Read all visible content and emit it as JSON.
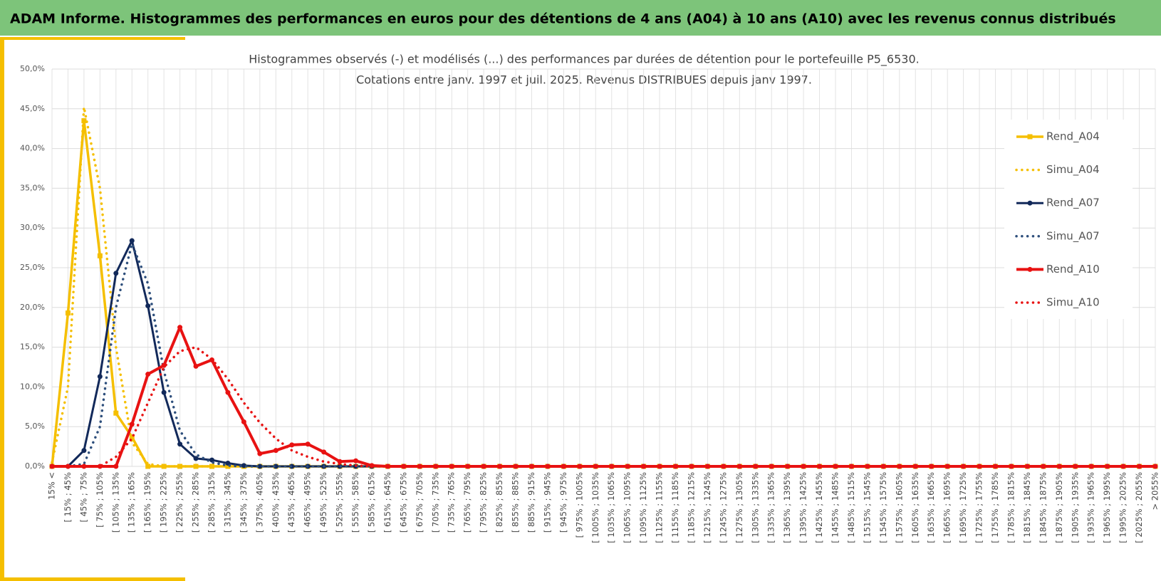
{
  "header": {
    "title": "ADAM Informe. Histogrammes des performances en euros pour des détentions de 4 ans (A04) à 10 ans (A10) avec les revenus connus distribués"
  },
  "chart_data": {
    "type": "line",
    "title": "Histogrammes observés (-) et modélisés (...) des performances par durées de détention pour le portefeuille P5_6530.",
    "subtitle": "Cotations entre janv. 1997 et juil. 2025. Revenus DISTRIBUES depuis janv 1997.",
    "categories": [
      "15% <",
      "[ 15% ; 45%",
      "[ 45% ; 75%",
      "[ 75% ; 105%",
      "[ 105% ; 135%",
      "[ 135% ; 165%",
      "[ 165% ; 195%",
      "[ 195% ; 225%",
      "[ 225% ; 255%",
      "[ 255% ; 285%",
      "[ 285% ; 315%",
      "[ 315% ; 345%",
      "[ 345% ; 375%",
      "[ 375% ; 405%",
      "[ 405% ; 435%",
      "[ 435% ; 465%",
      "[ 465% ; 495%",
      "[ 495% ; 525%",
      "[ 525% ; 555%",
      "[ 555% ; 585%",
      "[ 585% ; 615%",
      "[ 615% ; 645%",
      "[ 645% ; 675%",
      "[ 675% ; 705%",
      "[ 705% ; 735%",
      "[ 735% ; 765%",
      "[ 765% ; 795%",
      "[ 795% ; 825%",
      "[ 825% ; 855%",
      "[ 855% ; 885%",
      "[ 885% ; 915%",
      "[ 915% ; 945%",
      "[ 945% ; 975%",
      "[ 975% ; 1005%",
      "[ 1005% ; 1035%",
      "[ 1035% ; 1065%",
      "[ 1065% ; 1095%",
      "[ 1095% ; 1125%",
      "[ 1125% ; 1155%",
      "[ 1155% ; 1185%",
      "[ 1185% ; 1215%",
      "[ 1215% ; 1245%",
      "[ 1245% ; 1275%",
      "[ 1275% ; 1305%",
      "[ 1305% ; 1335%",
      "[ 1335% ; 1365%",
      "[ 1365% ; 1395%",
      "[ 1395% ; 1425%",
      "[ 1425% ; 1455%",
      "[ 1455% ; 1485%",
      "[ 1485% ; 1515%",
      "[ 1515% ; 1545%",
      "[ 1545% ; 1575%",
      "[ 1575% ; 1605%",
      "[ 1605% ; 1635%",
      "[ 1635% ; 1665%",
      "[ 1665% ; 1695%",
      "[ 1695% ; 1725%",
      "[ 1725% ; 1755%",
      "[ 1755% ; 1785%",
      "[ 1785% ; 1815%",
      "[ 1815% ; 1845%",
      "[ 1845% ; 1875%",
      "[ 1875% ; 1905%",
      "[ 1905% ; 1935%",
      "[ 1935% ; 1965%",
      "[ 1965% ; 1995%",
      "[ 1995% ; 2025%",
      "[ 2025% ; 2055%",
      "> 2055%"
    ],
    "series": [
      {
        "name": "Rend_A04",
        "color": "#f5bf00",
        "dash": "solid",
        "marker": "square",
        "width": 3.5,
        "values": [
          0,
          19.3,
          43.5,
          26.5,
          6.7,
          3.7,
          0,
          0,
          0,
          0,
          0,
          0,
          0,
          0,
          0,
          0,
          0,
          0,
          0,
          0,
          0,
          0,
          0,
          0,
          0,
          0,
          0,
          0,
          0,
          0,
          0,
          0,
          0,
          0,
          0,
          0,
          0,
          0,
          0,
          0,
          0,
          0,
          0,
          0,
          0,
          0,
          0,
          0,
          0,
          0,
          0,
          0,
          0,
          0,
          0,
          0,
          0,
          0,
          0,
          0,
          0,
          0,
          0,
          0,
          0,
          0,
          0,
          0,
          0,
          0
        ]
      },
      {
        "name": "Simu_A04",
        "color": "#f5bf00",
        "dash": "dotted",
        "marker": null,
        "width": 3.5,
        "values": [
          0.5,
          10,
          45.2,
          35,
          15,
          3,
          0.3,
          0,
          0,
          0,
          0,
          0,
          0,
          0,
          0,
          0,
          0,
          0,
          0,
          0,
          0,
          0,
          0,
          0,
          0,
          0,
          0,
          0,
          0,
          0,
          0,
          0,
          0,
          0,
          0,
          0,
          0,
          0,
          0,
          0,
          0,
          0,
          0,
          0,
          0,
          0,
          0,
          0,
          0,
          0,
          0,
          0,
          0,
          0,
          0,
          0,
          0,
          0,
          0,
          0,
          0,
          0,
          0,
          0,
          0,
          0,
          0,
          0,
          0,
          0
        ]
      },
      {
        "name": "Rend_A07",
        "color": "#12295a",
        "dash": "solid",
        "marker": "circle",
        "width": 3,
        "values": [
          0,
          0,
          2,
          11.3,
          24.3,
          28.4,
          20.2,
          9.3,
          2.8,
          1.0,
          0.8,
          0.4,
          0.1,
          0,
          0,
          0,
          0,
          0,
          0,
          0,
          0,
          0,
          0,
          0,
          0,
          0,
          0,
          0,
          0,
          0,
          0,
          0,
          0,
          0,
          0,
          0,
          0,
          0,
          0,
          0,
          0,
          0,
          0,
          0,
          0,
          0,
          0,
          0,
          0,
          0,
          0,
          0,
          0,
          0,
          0,
          0,
          0,
          0,
          0,
          0,
          0,
          0,
          0,
          0,
          0,
          0,
          0,
          0,
          0,
          0
        ]
      },
      {
        "name": "Simu_A07",
        "color": "#2e4f7c",
        "dash": "dotted",
        "marker": null,
        "width": 3.5,
        "values": [
          0,
          0,
          0.3,
          5,
          20,
          28,
          23,
          12,
          4.5,
          1.5,
          0.5,
          0.1,
          0,
          0,
          0,
          0,
          0,
          0,
          0,
          0,
          0,
          0,
          0,
          0,
          0,
          0,
          0,
          0,
          0,
          0,
          0,
          0,
          0,
          0,
          0,
          0,
          0,
          0,
          0,
          0,
          0,
          0,
          0,
          0,
          0,
          0,
          0,
          0,
          0,
          0,
          0,
          0,
          0,
          0,
          0,
          0,
          0,
          0,
          0,
          0,
          0,
          0,
          0,
          0,
          0,
          0,
          0,
          0,
          0,
          0
        ]
      },
      {
        "name": "Rend_A10",
        "color": "#e81212",
        "dash": "solid",
        "marker": "circle",
        "width": 4,
        "values": [
          0,
          0,
          0,
          0,
          0,
          5.3,
          11.6,
          12.7,
          17.5,
          12.6,
          13.4,
          9.3,
          5.6,
          1.6,
          2.0,
          2.7,
          2.8,
          1.8,
          0.6,
          0.7,
          0.1,
          0,
          0,
          0,
          0,
          0,
          0,
          0,
          0,
          0,
          0,
          0,
          0,
          0,
          0,
          0,
          0,
          0,
          0,
          0,
          0,
          0,
          0,
          0,
          0,
          0,
          0,
          0,
          0,
          0,
          0,
          0,
          0,
          0,
          0,
          0,
          0,
          0,
          0,
          0,
          0,
          0,
          0,
          0,
          0,
          0,
          0,
          0,
          0,
          0
        ]
      },
      {
        "name": "Simu_A10",
        "color": "#e81212",
        "dash": "dotted",
        "marker": null,
        "width": 3.5,
        "values": [
          0,
          0,
          0,
          0,
          1.2,
          3.5,
          8,
          12.5,
          14.5,
          15,
          13.5,
          11,
          8,
          5.5,
          3.5,
          2,
          1.2,
          0.6,
          0.3,
          0.1,
          0,
          0,
          0,
          0,
          0,
          0,
          0,
          0,
          0,
          0,
          0,
          0,
          0,
          0,
          0,
          0,
          0,
          0,
          0,
          0,
          0,
          0,
          0,
          0,
          0,
          0,
          0,
          0,
          0,
          0,
          0,
          0,
          0,
          0,
          0,
          0,
          0,
          0,
          0,
          0,
          0,
          0,
          0,
          0,
          0,
          0,
          0,
          0,
          0,
          0
        ]
      }
    ],
    "ylim": [
      0,
      50
    ],
    "yticks": [
      {
        "value": 0,
        "label": "0,0%"
      },
      {
        "value": 5,
        "label": "5,0%"
      },
      {
        "value": 10,
        "label": "10,0%"
      },
      {
        "value": 15,
        "label": "15,0%"
      },
      {
        "value": 20,
        "label": "20,0%"
      },
      {
        "value": 25,
        "label": "25,0%"
      },
      {
        "value": 30,
        "label": "30,0%"
      },
      {
        "value": 35,
        "label": "35,0%"
      },
      {
        "value": 40,
        "label": "40,0%"
      },
      {
        "value": 45,
        "label": "45,0%"
      },
      {
        "value": 50,
        "label": "50,0%"
      }
    ],
    "grid": true,
    "legend": "right"
  }
}
